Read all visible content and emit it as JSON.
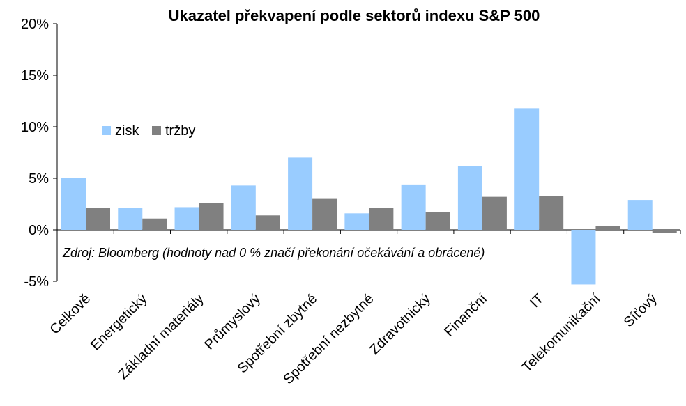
{
  "chart_data": {
    "type": "bar",
    "title": "Ukazatel překvapení podle sektorů indexu S&P 500",
    "categories": [
      "Celkově",
      "Energetický",
      "Základní materiály",
      "Průmyslový",
      "Spotřební zbytné",
      "Spotřební nezbytné",
      "Zdravotnický",
      "Finanční",
      "IT",
      "Telekomunikační",
      "Síťový"
    ],
    "series": [
      {
        "name": "zisk",
        "color": "#99ccff",
        "values": [
          5.0,
          2.1,
          2.2,
          4.3,
          7.0,
          1.6,
          4.4,
          6.2,
          11.8,
          -5.3,
          2.9
        ]
      },
      {
        "name": "tržby",
        "color": "#808080",
        "values": [
          2.1,
          1.1,
          2.6,
          1.4,
          3.0,
          2.1,
          1.7,
          3.2,
          3.3,
          0.4,
          -0.3
        ]
      }
    ],
    "ylim": [
      -5,
      20
    ],
    "yticks": [
      -5,
      0,
      5,
      10,
      15,
      20
    ],
    "ytick_labels": [
      "-5%",
      "0%",
      "5%",
      "10%",
      "15%",
      "20%"
    ],
    "xlabel": "",
    "ylabel": "",
    "legend": {
      "position": "top-left"
    },
    "grid": false,
    "annotation": "Zdroj: Bloomberg (hodnoty nad 0 % značí překonání očekávání a obrácené)"
  }
}
